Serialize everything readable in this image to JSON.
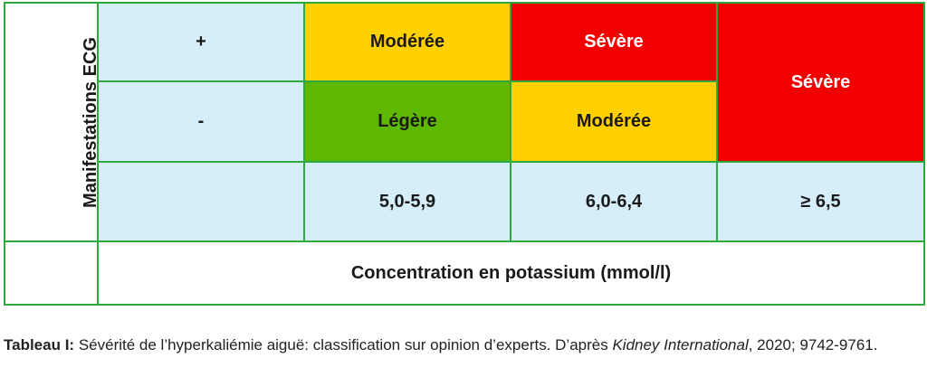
{
  "table": {
    "ylabel": "Manifestations ECG",
    "row_plus": {
      "label": "+",
      "moderee": {
        "text": "Modérée",
        "color": "#ffd100"
      },
      "severe": {
        "text": "Sévère",
        "color": "#f20000"
      }
    },
    "row_minus": {
      "label": "-",
      "legere": {
        "text": "Légère",
        "color": "#5fb800"
      },
      "moderee": {
        "text": "Modérée",
        "color": "#ffd100"
      }
    },
    "severe_merged": {
      "text": "Sévère",
      "color": "#f20000"
    },
    "concentrations": [
      "5,0-5,9",
      "6,0-6,4",
      "≥ 6,5"
    ],
    "xlabel": "Concentration en potassium (mmol/l)",
    "colors": {
      "border": "#2eaa3c",
      "cell_blue": "#d6eefa"
    }
  },
  "caption": {
    "lead": "Tableau I:",
    "text": " Sévérité de l’hyperkaliémie aiguë: classification sur opinion d’experts. D’après ",
    "journal": "Kidney International",
    "tail": ", 2020; 9742-9761."
  }
}
